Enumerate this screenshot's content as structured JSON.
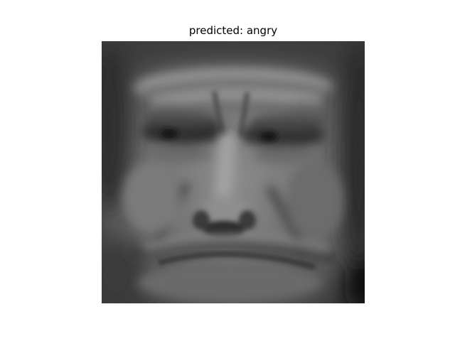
{
  "figure": {
    "title": "predicted: angry"
  },
  "image": {
    "colormap": "grayscale"
  }
}
